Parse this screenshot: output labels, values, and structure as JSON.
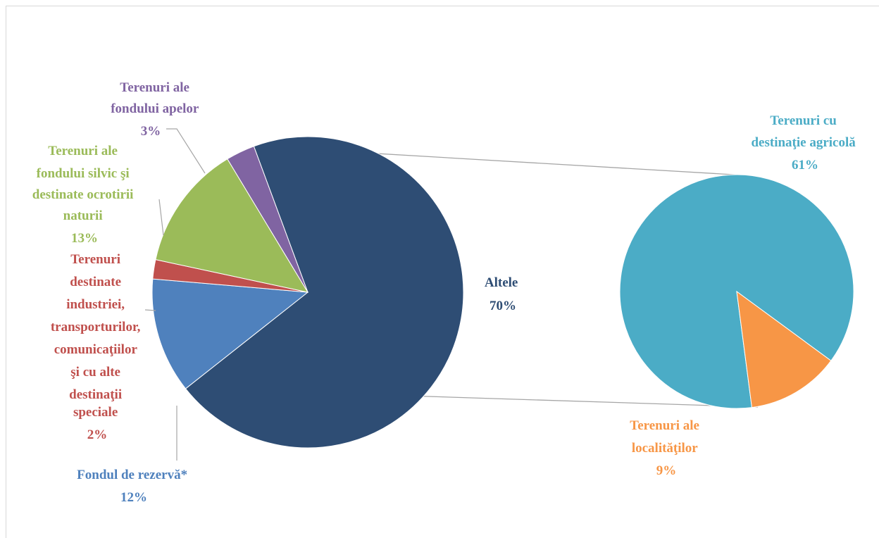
{
  "chart_data": {
    "type": "pie",
    "subtype": "pie-of-pie",
    "title": "",
    "main_pie": {
      "slices": [
        {
          "label": "Altele",
          "value": 70,
          "pct_label": "70%",
          "color": "#2e4d74",
          "label_color": "#2e4d74"
        },
        {
          "label": "Fondul de rezervă*",
          "value": 12,
          "pct_label": "12%",
          "color": "#4f81bd",
          "label_color": "#4f81bd"
        },
        {
          "label": "Terenuri destinate industriei, transporturilor, comunicaţiilor şi cu alte destinaţii speciale",
          "value": 2,
          "pct_label": "2%",
          "color": "#c0504d",
          "label_color": "#c0504d"
        },
        {
          "label": "Terenuri ale fondului silvic şi destinate ocrotirii naturii",
          "value": 13,
          "pct_label": "13%",
          "color": "#9bbb59",
          "label_color": "#9bbb59"
        },
        {
          "label": "Terenuri ale fondului apelor",
          "value": 3,
          "pct_label": "3%",
          "color": "#8064a2",
          "label_color": "#8064a2"
        }
      ]
    },
    "secondary_pie": {
      "expands": "Altele",
      "slices": [
        {
          "label": "Terenuri cu destinaţie agricolă",
          "value": 61,
          "pct_label": "61%",
          "color": "#4bacc6",
          "label_color": "#4bacc6"
        },
        {
          "label": "Terenuri ale localităţilor",
          "value": 9,
          "pct_label": "9%",
          "color": "#f79646",
          "label_color": "#f79646"
        }
      ]
    },
    "legend": "none",
    "connector_color": "#a6a6a6"
  },
  "labels": {
    "altele": [
      "Altele",
      "70%"
    ],
    "rezerva": [
      "Fondul de rezervă*",
      "12%"
    ],
    "industrie": [
      "Terenuri",
      "destinate",
      "industriei,",
      "transporturilor,",
      "comunicaţiilor",
      "şi cu alte",
      "destinaţii",
      "speciale",
      "2%"
    ],
    "silvic": [
      "Terenuri ale",
      "fondului silvic şi",
      "destinate ocrotirii",
      "naturii",
      "13%"
    ],
    "apelor": [
      "Terenuri ale",
      "fondului apelor",
      "3%"
    ],
    "agricola": [
      "Terenuri cu",
      "destinaţie agricolă",
      "61%"
    ],
    "localitati": [
      "Terenuri ale",
      "localităţilor",
      "9%"
    ]
  }
}
